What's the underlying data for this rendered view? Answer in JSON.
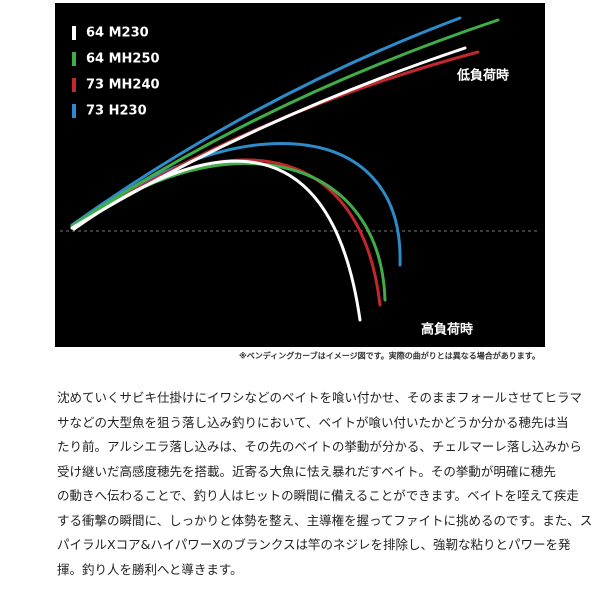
{
  "diagram": {
    "legend": [
      {
        "label": "64 M230",
        "color": "#ffffff"
      },
      {
        "label": "64 MH250",
        "color": "#3fae49"
      },
      {
        "label": "73 MH240",
        "color": "#c1272d"
      },
      {
        "label": "73 H230",
        "color": "#2e8bc9"
      }
    ],
    "low_load_label": "低負荷時",
    "high_load_label": "高負荷時",
    "note": "※ベンディングカーブはイメージ図です。実際の曲がりとは異なる場合があります。"
  },
  "description": {
    "lines": [
      "沈めていくサビキ仕掛けにイワシなどのベイトを喰い付かせ、そのままフォールさせてヒラマ",
      "サなどの大型魚を狙う落し込み釣りにおいて、ベイトが喰い付いたかどうか分かる穂先は当",
      "たり前。アルシエラ落し込みは、その先のベイトの挙動が分かる、チェルマーレ落し込みから",
      "受け継いだ高感度穂先を搭載。近寄る大魚に怯え暴れだすベイト。その挙動が明確に穂先",
      "の動きへ伝わることで、釣り人はヒットの瞬間に備えることができます。ベイトを咥えて疾走",
      "する衝撃の瞬間に、しっかりと体勢を整え、主導権を握ってファイトに挑めるのです。また、ス",
      "パイラルXコア&ハイパワーXのブランクスは竿のネジレを排除し、強靭な粘りとパワーを発",
      "揮。釣り人を勝利へと導きます。"
    ]
  }
}
